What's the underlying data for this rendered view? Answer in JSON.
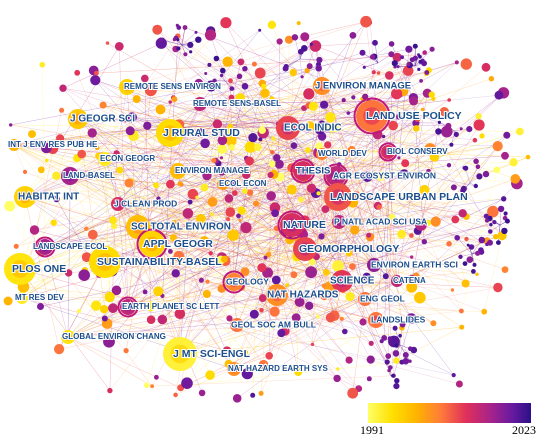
{
  "title": "",
  "colors": {
    "background": "#ffffff",
    "label": "#1c4e8c",
    "ring": "#c0187a",
    "scale": [
      "#ffff66",
      "#ffe000",
      "#ffb300",
      "#ff7a3a",
      "#e0305a",
      "#a8238a",
      "#6a1aa0",
      "#2c1088"
    ]
  },
  "legend": {
    "start_label": "1991",
    "end_label": "2023"
  },
  "nodes": [
    {
      "id": "LAND USE POLICY",
      "year": 2005,
      "weight": 4
    },
    {
      "id": "J ENVIRON MANAGE",
      "year": 2003,
      "weight": 3
    },
    {
      "id": "J GEOGR SCI",
      "year": 1998,
      "weight": 3
    },
    {
      "id": "J RURAL STUD",
      "year": 1996,
      "weight": 4
    },
    {
      "id": "ECOL INDIC",
      "year": 2008,
      "weight": 3
    },
    {
      "id": "REMOTE SENS ENVIRON",
      "year": 1997,
      "weight": 2
    },
    {
      "id": "REMOTE SENS-BASEL",
      "year": 2012,
      "weight": 2
    },
    {
      "id": "INT J ENV RES PUB HE",
      "year": 2000,
      "weight": 2
    },
    {
      "id": "ECON GEOGR",
      "year": 1994,
      "weight": 2
    },
    {
      "id": "LAND-BASEL",
      "year": 2014,
      "weight": 2
    },
    {
      "id": "ENVIRON MANAGE",
      "year": 1999,
      "weight": 2
    },
    {
      "id": "WORLD DEV",
      "year": 2004,
      "weight": 2
    },
    {
      "id": "BIOL CONSERV",
      "year": 2010,
      "weight": 2
    },
    {
      "id": "THESIS",
      "year": 2010,
      "weight": 3
    },
    {
      "id": "AGR ECOSYST ENVIRON",
      "year": 2012,
      "weight": 3
    },
    {
      "id": "HABITAT INT",
      "year": 1997,
      "weight": 3
    },
    {
      "id": "J CLEAN PROD",
      "year": 2010,
      "weight": 2
    },
    {
      "id": "ECOL ECON",
      "year": 2002,
      "weight": 2
    },
    {
      "id": "LANDSCAPE URBAN PLAN",
      "year": 2007,
      "weight": 4
    },
    {
      "id": "SCI TOTAL ENVIRON",
      "year": 1999,
      "weight": 3
    },
    {
      "id": "NATURE",
      "year": 2010,
      "weight": 4
    },
    {
      "id": "P NATL ACAD SCI USA",
      "year": 2012,
      "weight": 2
    },
    {
      "id": "LANDSCAPE ECOL",
      "year": 2014,
      "weight": 2
    },
    {
      "id": "APPL GEOGR",
      "year": 1997,
      "weight": 4
    },
    {
      "id": "GEOMORPHOLOGY",
      "year": 2008,
      "weight": 3
    },
    {
      "id": "PLOS ONE",
      "year": 1995,
      "weight": 3
    },
    {
      "id": "SUSTAINABILITY-BASEL",
      "year": 1996,
      "weight": 4
    },
    {
      "id": "ENVIRON EARTH SCI",
      "year": 2016,
      "weight": 2
    },
    {
      "id": "CATENA",
      "year": 2012,
      "weight": 2
    },
    {
      "id": "GEOLOGY",
      "year": 2004,
      "weight": 2
    },
    {
      "id": "NAT HAZARDS",
      "year": 2003,
      "weight": 3
    },
    {
      "id": "SCIENCE",
      "year": 2009,
      "weight": 3
    },
    {
      "id": "MT RES DEV",
      "year": 1994,
      "weight": 2
    },
    {
      "id": "EARTH PLANET SC LETT",
      "year": 2012,
      "weight": 2
    },
    {
      "id": "ENG GEOL",
      "year": 2005,
      "weight": 2
    },
    {
      "id": "LANDSLIDES",
      "year": 2005,
      "weight": 2
    },
    {
      "id": "GLOBAL ENVIRON CHANG",
      "year": 1995,
      "weight": 2
    },
    {
      "id": "GEOL SOC AM BULL",
      "year": 2005,
      "weight": 2
    },
    {
      "id": "J MT SCI-ENGL",
      "year": 1993,
      "weight": 4
    },
    {
      "id": "NAT HAZARD EARTH SYS",
      "year": 2003,
      "weight": 2
    }
  ]
}
